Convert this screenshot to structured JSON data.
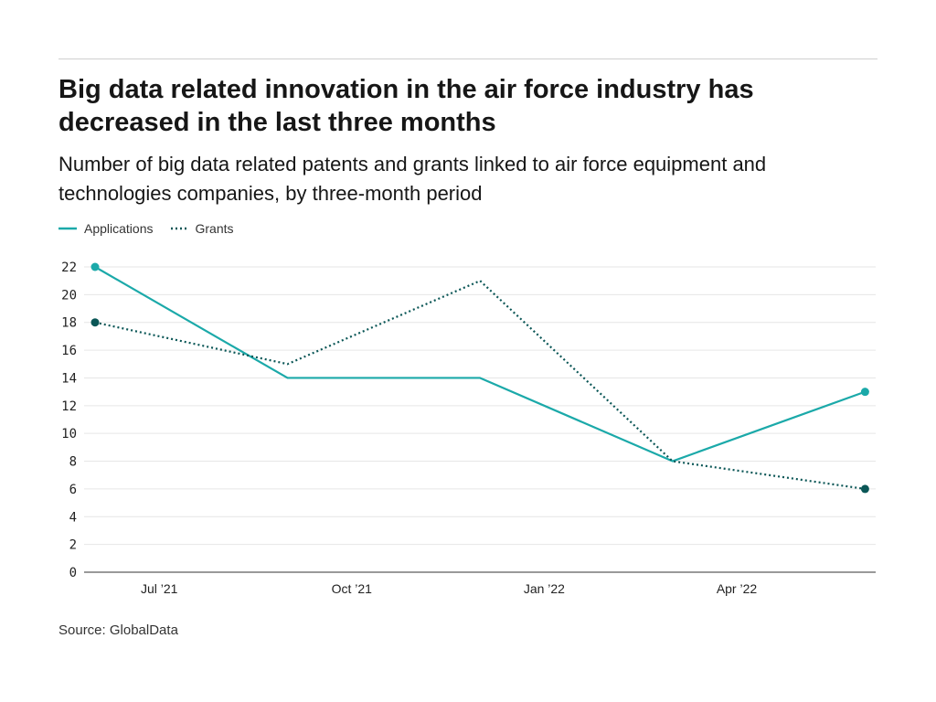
{
  "title": "Big data related innovation in the air force industry has decreased in the last three months",
  "subtitle": "Number of big data related patents and grants linked to air force equipment and technologies companies, by three-month period",
  "source": "Source: GlobalData",
  "colors": {
    "applications": "#1ba9a9",
    "grants": "#0a5656",
    "grid": "#e6e6e6"
  },
  "chart_data": {
    "type": "line",
    "title": "Big data related innovation in the air force industry has decreased in the last three months",
    "xlabel": "",
    "ylabel": "",
    "x": [
      "2021-06",
      "2021-09",
      "2021-12",
      "2022-03",
      "2022-06"
    ],
    "series": [
      {
        "name": "Applications",
        "values": [
          22,
          14,
          14,
          8,
          13
        ],
        "style": "solid"
      },
      {
        "name": "Grants",
        "values": [
          18,
          15,
          21,
          8,
          6
        ],
        "style": "dotted"
      }
    ],
    "ylim": [
      0,
      22
    ],
    "yticks": [
      "0",
      "2",
      "4",
      "6",
      "8",
      "10",
      "12",
      "14",
      "16",
      "18",
      "20",
      "22"
    ],
    "xticks": [
      {
        "label": "Jul ’21",
        "at": "2021-07"
      },
      {
        "label": "Oct ’21",
        "at": "2021-10"
      },
      {
        "label": "Jan ’22",
        "at": "2022-01"
      },
      {
        "label": "Apr ’22",
        "at": "2022-04"
      }
    ],
    "grid": true,
    "legend": "top-left"
  }
}
